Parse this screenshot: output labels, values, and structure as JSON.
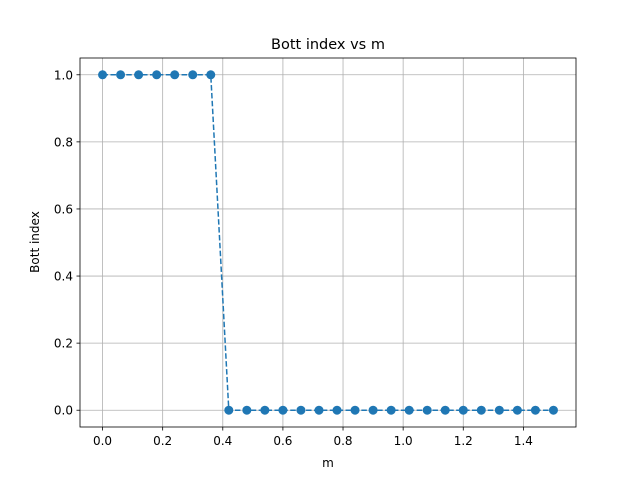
{
  "chart_data": {
    "type": "line",
    "title": "Bott index vs m",
    "xlabel": "m",
    "ylabel": "Bott index",
    "xlim": [
      -0.075,
      1.575
    ],
    "ylim": [
      -0.05,
      1.05
    ],
    "xticks": [
      0.0,
      0.2,
      0.4,
      0.6,
      0.8,
      1.0,
      1.2,
      1.4
    ],
    "xtick_labels": [
      "0.0",
      "0.2",
      "0.4",
      "0.6",
      "0.8",
      "1.0",
      "1.2",
      "1.4"
    ],
    "yticks": [
      0.0,
      0.2,
      0.4,
      0.6,
      0.8,
      1.0
    ],
    "ytick_labels": [
      "0.0",
      "0.2",
      "0.4",
      "0.6",
      "0.8",
      "1.0"
    ],
    "grid": true,
    "series": [
      {
        "color": "#1f77b4",
        "line_style": "dashed",
        "marker": "circle",
        "x": [
          0.0,
          0.06,
          0.12,
          0.18,
          0.24,
          0.3,
          0.36,
          0.42,
          0.48,
          0.54,
          0.6,
          0.66,
          0.72,
          0.78,
          0.84,
          0.9,
          0.96,
          1.02,
          1.08,
          1.14,
          1.2,
          1.26,
          1.32,
          1.38,
          1.44,
          1.5
        ],
        "y": [
          1,
          1,
          1,
          1,
          1,
          1,
          1,
          0,
          0,
          0,
          0,
          0,
          0,
          0,
          0,
          0,
          0,
          0,
          0,
          0,
          0,
          0,
          0,
          0,
          0,
          0
        ]
      }
    ]
  }
}
